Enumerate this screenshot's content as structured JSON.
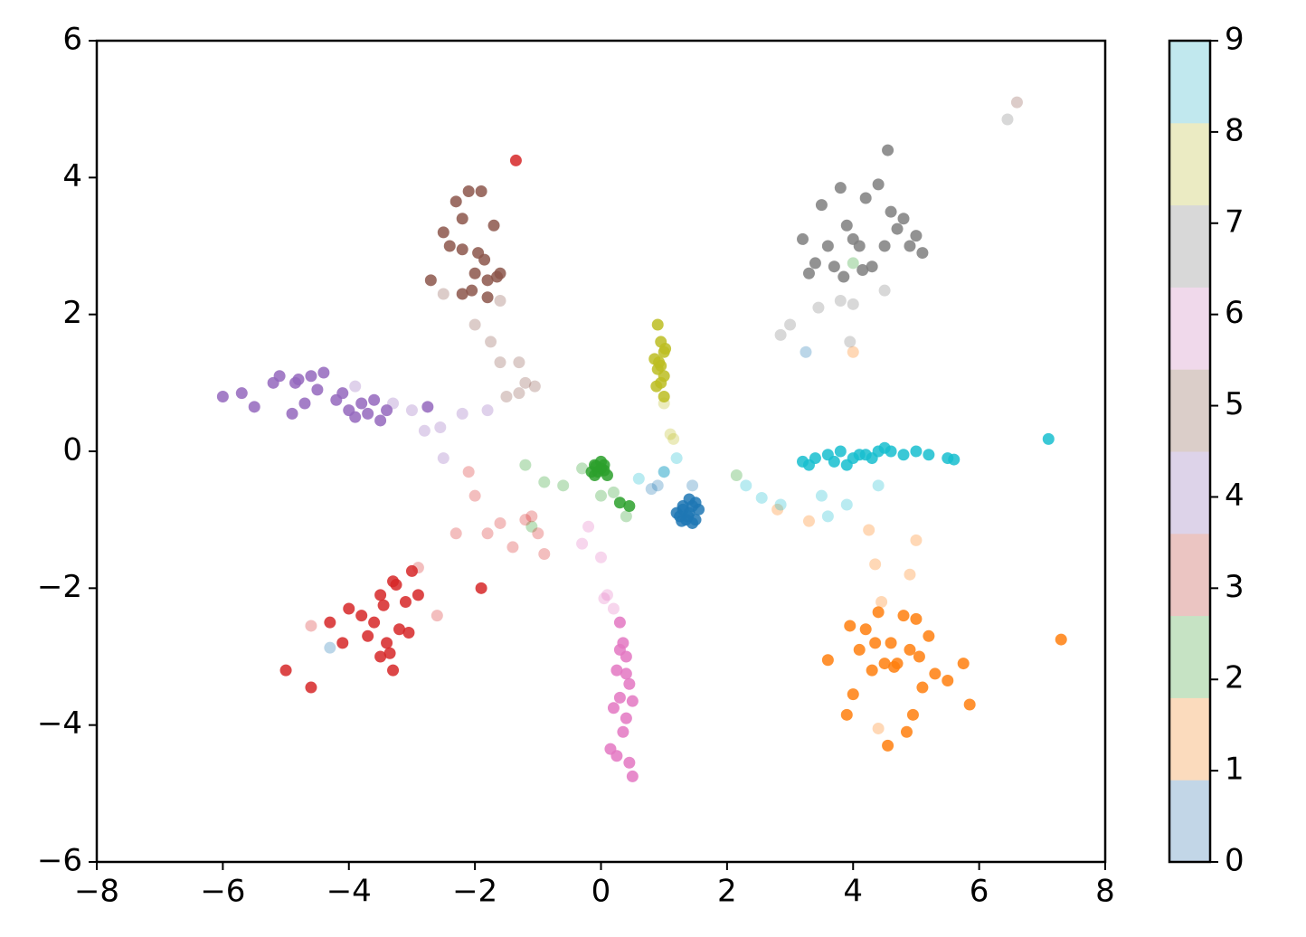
{
  "chart_data": {
    "type": "scatter",
    "xlim": [
      -8,
      8
    ],
    "ylim": [
      -6,
      6
    ],
    "xticks": [
      {
        "value": -8,
        "label": "−8"
      },
      {
        "value": -6,
        "label": "−6"
      },
      {
        "value": -4,
        "label": "−4"
      },
      {
        "value": -2,
        "label": "−2"
      },
      0,
      2,
      4,
      6,
      8
    ],
    "yticks": [
      {
        "value": -6,
        "label": "−6"
      },
      {
        "value": -4,
        "label": "−4"
      },
      {
        "value": -2,
        "label": "−2"
      },
      0,
      2,
      4,
      6
    ],
    "series": [
      {
        "color": "#1f77b4",
        "opacity": 0.85,
        "x": [
          1.3,
          1.4,
          1.5,
          1.35,
          1.25,
          1.45,
          1.55,
          1.2,
          1.4,
          1.3,
          1.5,
          1.38,
          1.45,
          1.28
        ],
        "values": [
          -0.8,
          -0.9,
          -0.75,
          -1.0,
          -0.95,
          -1.05,
          -0.85,
          -0.9,
          -0.7,
          -0.85,
          -1.0,
          -0.95,
          -0.8,
          -1.02
        ]
      },
      {
        "color": "#1f77b4",
        "opacity": 0.3,
        "x": [
          0.9,
          1.0,
          0.8,
          3.25,
          -4.3,
          1.45
        ],
        "values": [
          -0.5,
          -0.3,
          -0.55,
          1.45,
          -2.87,
          -0.5
        ]
      },
      {
        "color": "#ff7f0e",
        "opacity": 0.85,
        "x": [
          4.4,
          4.6,
          4.8,
          5.0,
          4.2,
          4.5,
          4.9,
          5.2,
          4.0,
          3.9,
          4.3,
          4.7,
          5.5,
          5.75,
          5.85,
          3.6,
          4.55,
          4.95,
          4.85,
          5.1,
          4.1,
          3.95,
          5.05,
          4.65,
          7.3,
          4.35,
          5.3
        ],
        "values": [
          -2.35,
          -2.8,
          -2.4,
          -2.45,
          -2.6,
          -3.1,
          -2.9,
          -2.7,
          -3.55,
          -3.85,
          -3.2,
          -3.1,
          -3.35,
          -3.1,
          -3.7,
          -3.05,
          -4.3,
          -3.85,
          -4.1,
          -3.45,
          -2.9,
          -2.55,
          -3.0,
          -3.15,
          -2.75,
          -2.8,
          -3.25
        ]
      },
      {
        "color": "#ff7f0e",
        "opacity": 0.3,
        "x": [
          4.0,
          4.25,
          4.35,
          4.9,
          5.0,
          3.3,
          2.8,
          4.45,
          4.4
        ],
        "values": [
          1.45,
          -1.15,
          -1.65,
          -1.8,
          -1.3,
          -1.02,
          -0.85,
          -2.2,
          -4.05
        ]
      },
      {
        "color": "#2ca02c",
        "opacity": 0.85,
        "x": [
          -0.1,
          0,
          -0.05,
          0.05,
          -0.15,
          0.1,
          0,
          -0.1,
          0.05,
          0.3,
          0.45,
          -0.08
        ],
        "values": [
          -0.2,
          -0.25,
          -0.3,
          -0.2,
          -0.3,
          -0.35,
          -0.15,
          -0.35,
          -0.28,
          -0.75,
          -0.8,
          -0.22
        ]
      },
      {
        "color": "#2ca02c",
        "opacity": 0.3,
        "x": [
          -0.3,
          -0.9,
          -0.6,
          0,
          0.2,
          0.4,
          2.15,
          -1.1,
          -1.2,
          4.0
        ],
        "values": [
          -0.25,
          -0.45,
          -0.5,
          -0.65,
          -0.6,
          -0.95,
          -0.35,
          -1.1,
          -0.2,
          2.75
        ]
      },
      {
        "color": "#d62728",
        "opacity": 0.85,
        "x": [
          -3.3,
          -3.5,
          -3.1,
          -3.0,
          -3.6,
          -3.8,
          -4.0,
          -3.2,
          -3.4,
          -2.9,
          -3.3,
          -3.7,
          -4.1,
          -3.35,
          -3.05,
          -3.5,
          -1.9,
          -5.0,
          -4.6,
          -1.35,
          -3.45,
          -3.25,
          -4.3
        ],
        "values": [
          -1.9,
          -2.1,
          -2.2,
          -1.75,
          -2.5,
          -2.4,
          -2.3,
          -2.6,
          -2.8,
          -2.1,
          -3.2,
          -2.7,
          -2.8,
          -2.95,
          -2.65,
          -3.0,
          -2.0,
          -3.2,
          -3.45,
          4.25,
          -2.25,
          -1.95,
          -2.5
        ]
      },
      {
        "color": "#d62728",
        "opacity": 0.3,
        "x": [
          -2.0,
          -1.8,
          -1.2,
          -1.4,
          -0.9,
          -2.3,
          -1.1,
          -2.1,
          -2.6,
          -1.6,
          -1.0,
          -2.9,
          -4.6
        ],
        "values": [
          -0.65,
          -1.2,
          -1.0,
          -1.4,
          -1.5,
          -1.2,
          -0.95,
          -0.3,
          -2.4,
          -1.05,
          -1.2,
          -1.7,
          -2.55
        ]
      },
      {
        "color": "#9467bd",
        "opacity": 0.85,
        "x": [
          -6.0,
          -5.7,
          -5.5,
          -5.2,
          -5.1,
          -4.8,
          -4.6,
          -4.5,
          -4.2,
          -4.0,
          -3.8,
          -3.6,
          -3.5,
          -4.7,
          -4.9,
          -4.4,
          -3.9,
          -3.4,
          -4.1,
          -3.7,
          -4.85,
          -2.75
        ],
        "values": [
          0.8,
          0.85,
          0.65,
          1.0,
          1.1,
          1.05,
          1.1,
          0.9,
          0.75,
          0.6,
          0.7,
          0.75,
          0.45,
          0.7,
          0.55,
          1.15,
          0.5,
          0.6,
          0.85,
          0.55,
          1.0,
          0.65
        ]
      },
      {
        "color": "#9467bd",
        "opacity": 0.3,
        "x": [
          -3.0,
          -2.8,
          -2.5,
          -2.2,
          -1.8,
          -3.9,
          -2.55,
          -3.3
        ],
        "values": [
          0.6,
          0.3,
          -0.1,
          0.55,
          0.6,
          0.95,
          0.35,
          0.7
        ]
      },
      {
        "color": "#8c564b",
        "opacity": 0.85,
        "x": [
          -2.5,
          -2.3,
          -2.1,
          -1.9,
          -1.7,
          -2.0,
          -1.8,
          -2.2,
          -1.6,
          -2.4,
          -2.7,
          -2.2,
          -1.85,
          -1.95,
          -1.65,
          -2.05,
          -1.8,
          -2.2
        ],
        "values": [
          3.2,
          3.65,
          3.8,
          3.8,
          3.3,
          2.6,
          2.5,
          2.3,
          2.6,
          3.0,
          2.5,
          3.4,
          2.8,
          2.9,
          2.55,
          2.35,
          2.25,
          2.95
        ]
      },
      {
        "color": "#8c564b",
        "opacity": 0.3,
        "x": [
          -2.0,
          -1.75,
          -1.6,
          -1.3,
          -1.2,
          -1.5,
          -2.5,
          -1.6,
          -1.05,
          -1.3,
          6.6
        ],
        "values": [
          1.85,
          1.6,
          1.3,
          1.3,
          1.0,
          0.8,
          2.3,
          2.2,
          0.95,
          0.85,
          5.1
        ]
      },
      {
        "color": "#e377c2",
        "opacity": 0.85,
        "x": [
          0.3,
          0.35,
          0.4,
          0.25,
          0.45,
          0.3,
          0.2,
          0.5,
          0.4,
          0.35,
          0.15,
          0.25,
          0.45,
          0.5,
          0.3,
          0.4
        ],
        "values": [
          -2.5,
          -2.8,
          -3.0,
          -3.2,
          -3.4,
          -3.6,
          -3.75,
          -3.65,
          -3.9,
          -4.1,
          -4.35,
          -4.45,
          -4.55,
          -4.75,
          -2.9,
          -3.25
        ]
      },
      {
        "color": "#e377c2",
        "opacity": 0.3,
        "x": [
          0.1,
          -0.3,
          0,
          -0.2,
          0.2,
          0.05
        ],
        "values": [
          -2.1,
          -1.35,
          -1.55,
          -1.1,
          -2.3,
          -2.15
        ]
      },
      {
        "color": "#7f7f7f",
        "opacity": 0.85,
        "x": [
          3.8,
          3.9,
          4.1,
          4.3,
          4.5,
          4.6,
          4.8,
          5.0,
          5.1,
          3.5,
          3.6,
          3.7,
          4.0,
          4.2,
          4.4,
          3.3,
          3.4,
          4.7,
          4.9,
          4.55,
          3.85,
          3.2,
          4.15
        ],
        "values": [
          3.85,
          3.3,
          3.0,
          2.7,
          3.0,
          3.5,
          3.4,
          3.15,
          2.9,
          3.6,
          3.0,
          2.7,
          3.1,
          3.7,
          3.9,
          2.6,
          2.75,
          3.25,
          3.0,
          4.4,
          2.55,
          3.1,
          2.65
        ]
      },
      {
        "color": "#7f7f7f",
        "opacity": 0.3,
        "x": [
          6.45,
          3.0,
          2.85,
          3.8,
          4.0,
          3.95,
          4.5,
          3.45
        ],
        "values": [
          4.85,
          1.85,
          1.7,
          2.2,
          2.15,
          1.6,
          2.35,
          2.1
        ]
      },
      {
        "color": "#bcbd22",
        "opacity": 0.85,
        "x": [
          0.9,
          0.95,
          1.0,
          0.85,
          0.9,
          1.0,
          0.95,
          0.88,
          1.02,
          0.92,
          1.0,
          0.95
        ],
        "values": [
          1.85,
          1.6,
          1.45,
          1.35,
          1.2,
          1.1,
          1.0,
          0.95,
          1.5,
          1.3,
          0.8,
          1.25
        ]
      },
      {
        "color": "#bcbd22",
        "opacity": 0.3,
        "x": [
          1.1,
          1.0,
          1.15
        ],
        "values": [
          0.25,
          0.7,
          0.18
        ]
      },
      {
        "color": "#17becf",
        "opacity": 0.85,
        "x": [
          3.2,
          3.4,
          3.6,
          3.8,
          4.0,
          4.2,
          4.4,
          4.6,
          4.8,
          5.0,
          5.2,
          5.5,
          5.6,
          3.7,
          3.9,
          4.1,
          4.3,
          4.5,
          7.1,
          3.3
        ],
        "values": [
          -0.15,
          -0.1,
          -0.05,
          0,
          -0.1,
          -0.05,
          0,
          0,
          -0.05,
          0,
          -0.05,
          -0.1,
          -0.12,
          -0.15,
          -0.2,
          -0.05,
          -0.1,
          0.05,
          0.18,
          -0.2
        ]
      },
      {
        "color": "#17becf",
        "opacity": 0.3,
        "x": [
          3.5,
          3.6,
          4.4,
          2.3,
          2.55,
          2.85,
          1.2,
          0.6,
          3.9,
          1.0
        ],
        "values": [
          -0.65,
          -0.95,
          -0.5,
          -0.5,
          -0.68,
          -0.78,
          -0.1,
          -0.4,
          -0.78,
          -0.3
        ]
      }
    ],
    "colorbar": {
      "lim": [
        0,
        9
      ],
      "ticks": [
        0,
        1,
        2,
        3,
        4,
        5,
        6,
        7,
        8,
        9
      ],
      "colors": [
        "#c2d6e7",
        "#fbdbbd",
        "#c6e3c4",
        "#ebc5c2",
        "#ddd3e9",
        "#dbcec9",
        "#f0d9eb",
        "#d8d8d8",
        "#ebebc3",
        "#c1e8ee"
      ]
    }
  }
}
